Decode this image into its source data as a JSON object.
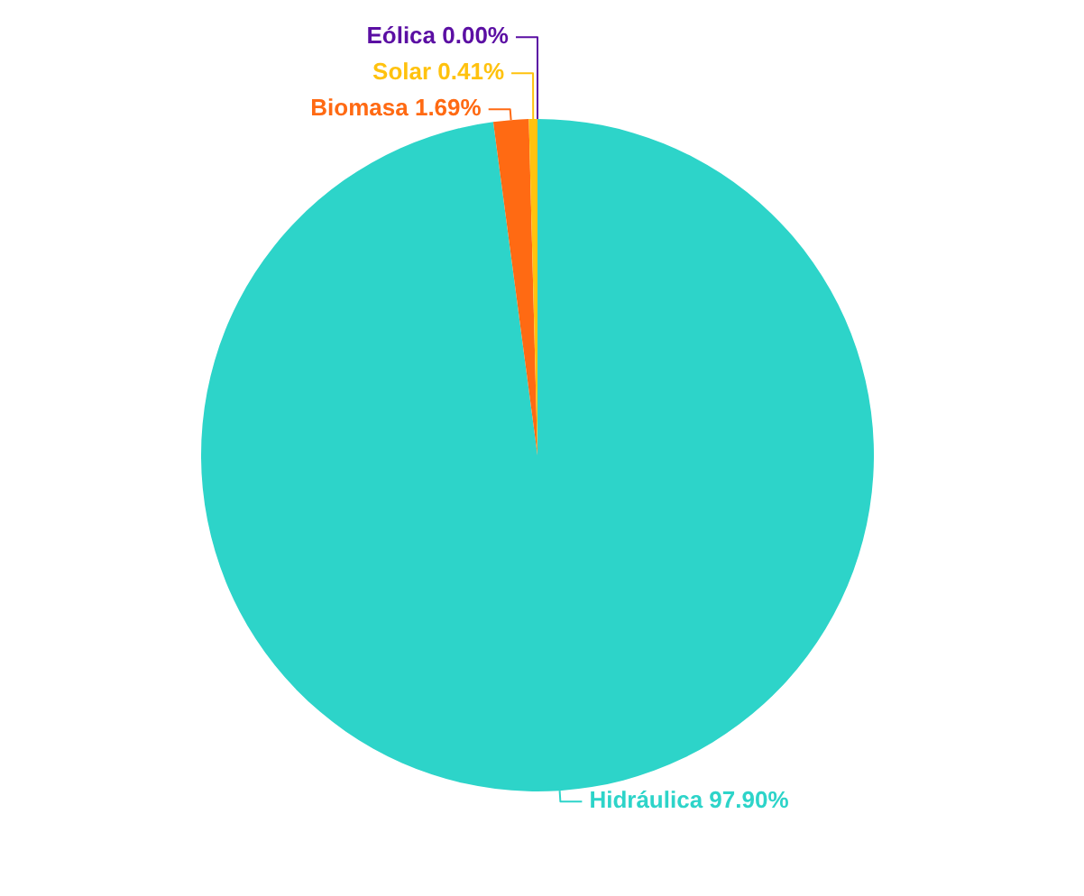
{
  "chart_data": {
    "type": "pie",
    "categories": [
      "Hidráulica",
      "Biomasa",
      "Solar",
      "Eólica"
    ],
    "values": [
      97.9,
      1.69,
      0.41,
      0.0
    ],
    "value_labels": [
      "97.90%",
      "1.69%",
      "0.41%",
      "0.00%"
    ],
    "colors": [
      "#2dd4c9",
      "#ff6a13",
      "#ffc20e",
      "#5b0fa3"
    ]
  }
}
